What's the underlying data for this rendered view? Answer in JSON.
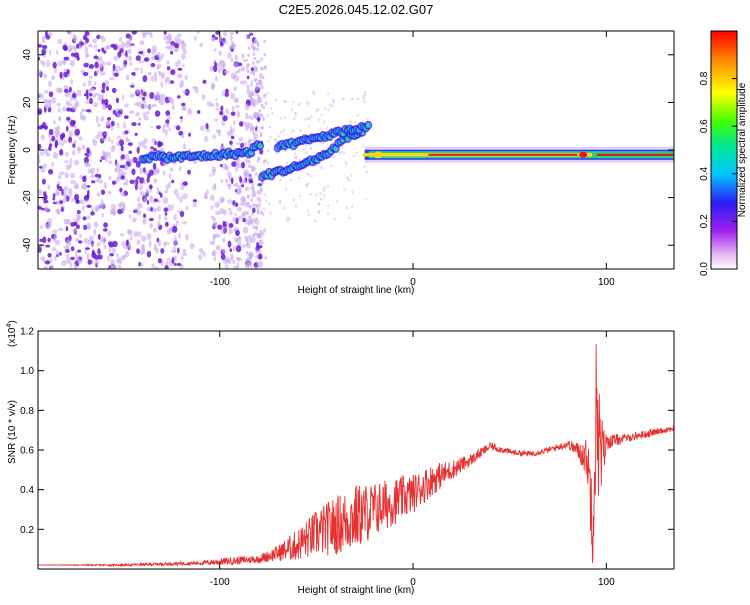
{
  "title": "C2E5.2026.045.12.02.G07",
  "colors": {
    "line": "#e83030",
    "scatter": "#6a1bd6",
    "scatter_faint": "#c9a9ef",
    "hot": "#e8141e",
    "warm": "#ffd800",
    "mid": "#22dd55",
    "cool": "#22c8e0",
    "frame": "#000000"
  },
  "chart_data": [
    {
      "type": "heatmap",
      "title": "C2E5.2026.045.12.02.G07",
      "xlabel": "Height of straight line (km)",
      "ylabel": "Frequency (Hz)",
      "xlim": [
        -194,
        135
      ],
      "ylim": [
        -50,
        50
      ],
      "x_ticks": [
        -100,
        0,
        100
      ],
      "x_tick_labels": [
        "-100",
        "0",
        "100"
      ],
      "y_ticks": [
        -40,
        -20,
        0,
        20,
        40
      ],
      "y_tick_labels": [
        "-40",
        "-20",
        "0",
        "20",
        "40"
      ],
      "colorbar": {
        "label": "Normalized spectral amplitude",
        "range": [
          0,
          1
        ],
        "ticks": [
          0,
          0.2,
          0.4,
          0.6,
          0.8
        ],
        "tick_labels": [
          "0.0",
          "0.2",
          "0.4",
          "0.6",
          "0.8"
        ]
      },
      "features": [
        {
          "name": "noise scatter",
          "x_range": [
            -194,
            -78
          ],
          "freq_range": [
            -50,
            50
          ]
        },
        {
          "name": "doppler trace A",
          "x": [
            -140,
            -120,
            -100,
            -85,
            -78
          ],
          "freq": [
            -3,
            -3,
            -2,
            -1,
            3
          ]
        },
        {
          "name": "doppler trace B",
          "x": [
            -78,
            -60,
            -45,
            -35,
            -25
          ],
          "freq": [
            -11,
            -7,
            -2,
            5,
            8
          ]
        },
        {
          "name": "doppler trace C",
          "x": [
            -70,
            -50,
            -35,
            -22
          ],
          "freq": [
            1,
            5,
            8,
            10
          ]
        },
        {
          "name": "steady carrier",
          "x": [
            -25,
            0,
            50,
            80,
            95,
            135
          ],
          "freq": [
            -2,
            -2,
            -2,
            -3,
            -3,
            -3
          ]
        }
      ]
    },
    {
      "type": "line",
      "xlabel": "Height of straight line (km)",
      "ylabel": "SNR (10 * v/v)",
      "y_exponent_label": "(x10",
      "y_exponent_power": "4",
      "y_exponent_close": ")",
      "xlim": [
        -194,
        135
      ],
      "ylim": [
        0,
        1.2
      ],
      "x_ticks": [
        -100,
        0,
        100
      ],
      "x_tick_labels": [
        "-100",
        "0",
        "100"
      ],
      "y_ticks": [
        0.2,
        0.4,
        0.6,
        0.8,
        1.0,
        1.2
      ],
      "y_tick_labels": [
        "0.2",
        "0.4",
        "0.6",
        "0.8",
        "1.0",
        "1.2"
      ],
      "series": [
        {
          "name": "SNR",
          "x": [
            -194,
            -150,
            -110,
            -95,
            -80,
            -70,
            -60,
            -50,
            -40,
            -30,
            -20,
            -10,
            0,
            10,
            20,
            30,
            40,
            50,
            60,
            70,
            80,
            85,
            90,
            93,
            95,
            97,
            100,
            110,
            120,
            130,
            135
          ],
          "values": [
            0.02,
            0.02,
            0.03,
            0.04,
            0.05,
            0.08,
            0.12,
            0.18,
            0.22,
            0.26,
            0.3,
            0.34,
            0.38,
            0.45,
            0.5,
            0.55,
            0.62,
            0.59,
            0.58,
            0.6,
            0.63,
            0.6,
            0.56,
            0.3,
            0.85,
            0.55,
            0.64,
            0.66,
            0.68,
            0.7,
            0.71
          ],
          "noise": [
            0.0,
            0.005,
            0.01,
            0.02,
            0.02,
            0.04,
            0.08,
            0.12,
            0.15,
            0.17,
            0.14,
            0.12,
            0.1,
            0.08,
            0.05,
            0.03,
            0.02,
            0.015,
            0.015,
            0.015,
            0.02,
            0.04,
            0.1,
            0.3,
            0.45,
            0.25,
            0.04,
            0.02,
            0.02,
            0.015,
            0.015
          ]
        }
      ]
    }
  ]
}
